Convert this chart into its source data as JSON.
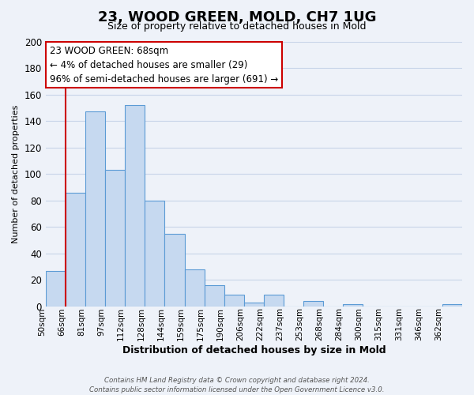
{
  "title": "23, WOOD GREEN, MOLD, CH7 1UG",
  "subtitle": "Size of property relative to detached houses in Mold",
  "xlabel": "Distribution of detached houses by size in Mold",
  "ylabel": "Number of detached properties",
  "bin_labels": [
    "50sqm",
    "66sqm",
    "81sqm",
    "97sqm",
    "112sqm",
    "128sqm",
    "144sqm",
    "159sqm",
    "175sqm",
    "190sqm",
    "206sqm",
    "222sqm",
    "237sqm",
    "253sqm",
    "268sqm",
    "284sqm",
    "300sqm",
    "315sqm",
    "331sqm",
    "346sqm",
    "362sqm"
  ],
  "bar_heights": [
    27,
    86,
    147,
    103,
    152,
    80,
    55,
    28,
    16,
    9,
    3,
    9,
    0,
    4,
    0,
    2,
    0,
    0,
    0,
    0,
    2
  ],
  "bar_color": "#c6d9f0",
  "bar_edge_color": "#5b9bd5",
  "vline_x_index": 1,
  "vline_color": "#cc0000",
  "ylim": [
    0,
    200
  ],
  "yticks": [
    0,
    20,
    40,
    60,
    80,
    100,
    120,
    140,
    160,
    180,
    200
  ],
  "annotation_line1": "23 WOOD GREEN: 68sqm",
  "annotation_line2": "← 4% of detached houses are smaller (29)",
  "annotation_line3": "96% of semi-detached houses are larger (691) →",
  "annotation_box_facecolor": "#ffffff",
  "annotation_box_edgecolor": "#cc0000",
  "footer_line1": "Contains HM Land Registry data © Crown copyright and database right 2024.",
  "footer_line2": "Contains public sector information licensed under the Open Government Licence v3.0.",
  "background_color": "#eef2f9",
  "grid_color": "#c8d4e8",
  "title_fontsize": 13,
  "subtitle_fontsize": 9
}
